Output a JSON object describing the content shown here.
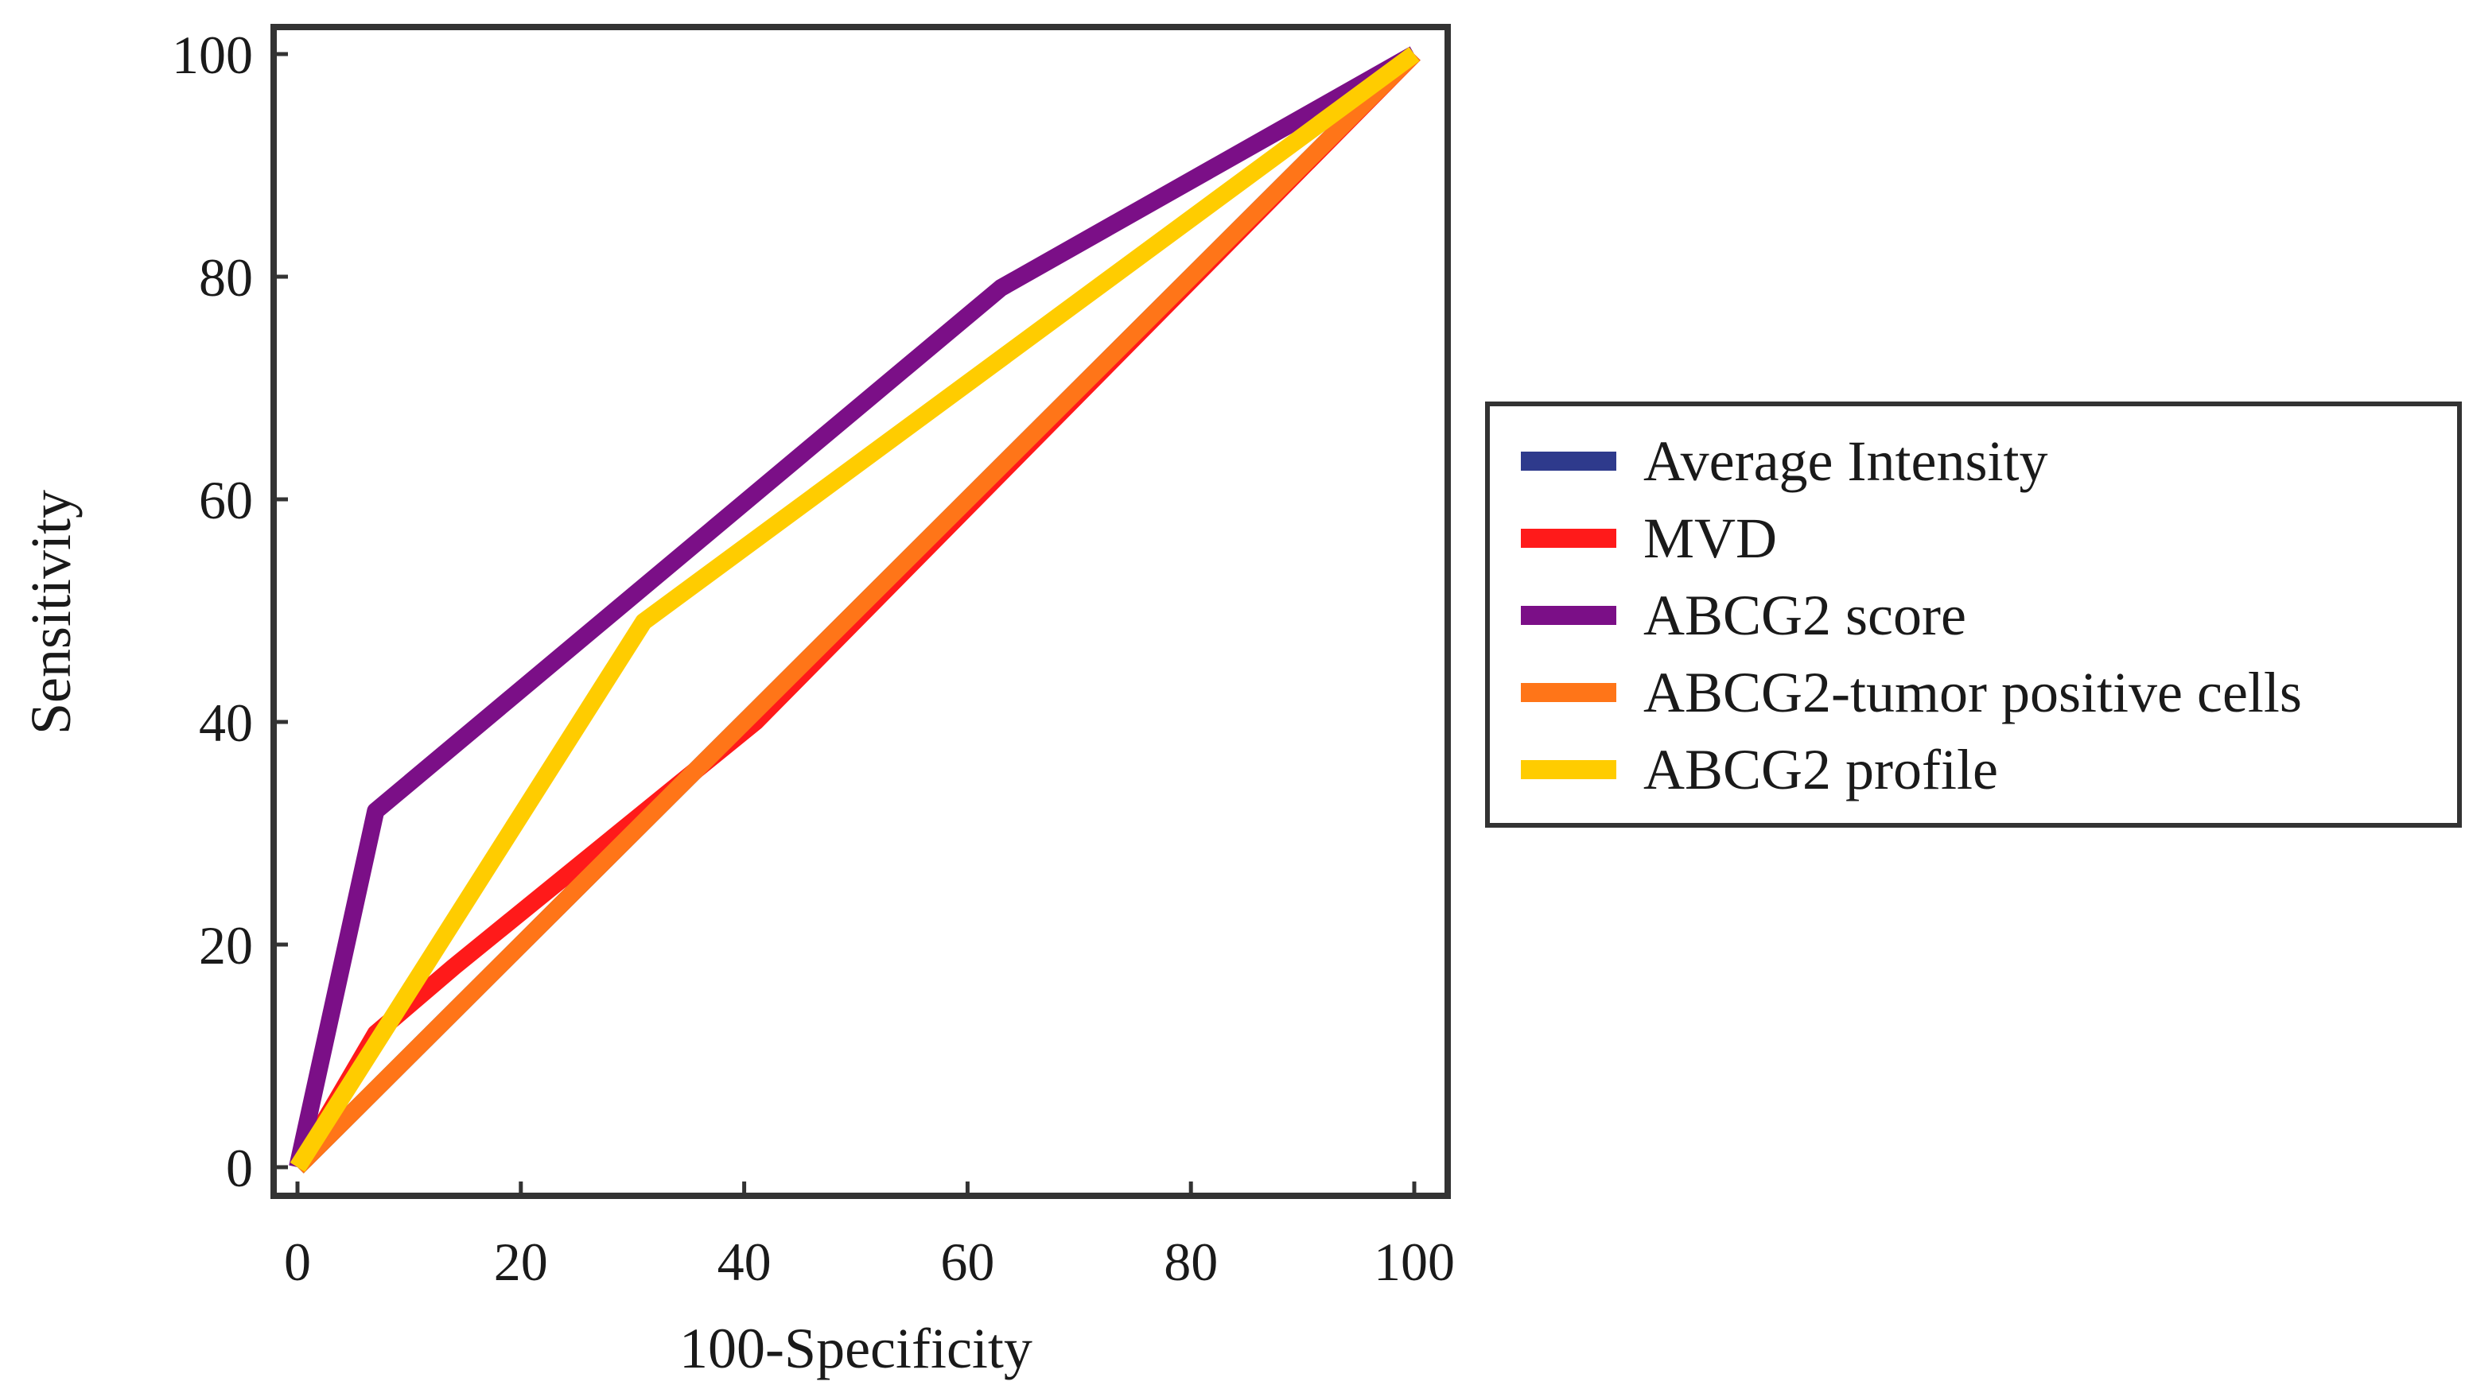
{
  "chart_data": {
    "type": "line",
    "title": "",
    "xlabel": "100-Specificity",
    "ylabel": "Sensitivity",
    "xlim": [
      0,
      100
    ],
    "ylim": [
      0,
      100
    ],
    "xticks": [
      0,
      20,
      40,
      60,
      80,
      100
    ],
    "yticks": [
      0,
      20,
      40,
      60,
      80,
      100
    ],
    "xtick_labels": [
      "0",
      "20",
      "40",
      "60",
      "80",
      "100"
    ],
    "ytick_labels": [
      "0",
      "20",
      "40",
      "60",
      "80",
      "100"
    ],
    "grid": false,
    "legend_position": "right",
    "series": [
      {
        "name": "Average Intensity",
        "color": "#2e3a8c",
        "x": [
          0,
          100
        ],
        "y": [
          0,
          100
        ]
      },
      {
        "name": "MVD",
        "color": "#ff1a1a",
        "x": [
          0,
          7,
          14,
          41,
          100
        ],
        "y": [
          0,
          12,
          18,
          40,
          100
        ]
      },
      {
        "name": "ABCG2 score",
        "color": "#7b0f87",
        "x": [
          0,
          7,
          63,
          100
        ],
        "y": [
          0,
          32,
          79,
          100
        ]
      },
      {
        "name": "ABCG2-tumor positive cells",
        "color": "#ff7518",
        "x": [
          0,
          100
        ],
        "y": [
          0,
          100
        ]
      },
      {
        "name": "ABCG2 profile",
        "color": "#ffcc00",
        "x": [
          0,
          31,
          100
        ],
        "y": [
          0,
          49,
          100
        ]
      }
    ]
  }
}
